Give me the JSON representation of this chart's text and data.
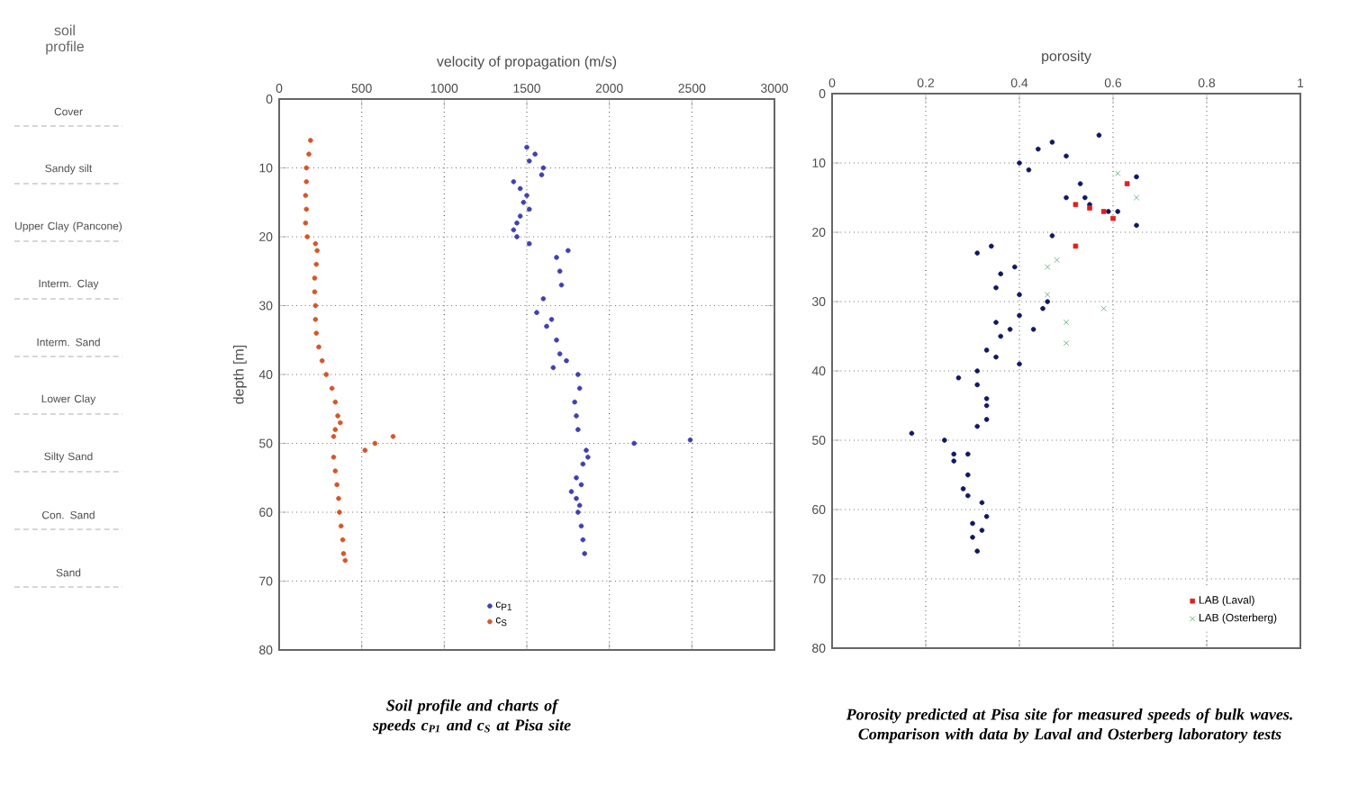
{
  "chart_data": [
    {
      "type": "other",
      "title": "soil profile",
      "annotations": [
        "Cover",
        "Sandy silt",
        "Upper Clay (Pancone)",
        "Interm. Clay",
        "Interm. Sand",
        "Lower Clay",
        "Silty Sand",
        "Con. Sand",
        "Sand"
      ]
    },
    {
      "type": "scatter",
      "xlabel": "velocity of propagation (m/s)",
      "ylabel": "depth [m]",
      "xlim": [
        0,
        3000
      ],
      "ylim": [
        80,
        0
      ],
      "xticks": [
        0,
        500,
        1000,
        1500,
        2000,
        2500,
        3000
      ],
      "yticks": [
        0,
        10,
        20,
        30,
        40,
        50,
        60,
        70,
        80
      ],
      "grid": true,
      "legend": "bottom",
      "annotations": [
        "Soil profile and charts of speeds c$_{P1}$ and c$_{S}$ at Pisa site"
      ],
      "series": [
        {
          "name": "c$_{P1}$",
          "color": "#4040b0",
          "marker": "circle",
          "x": [
            1500,
            1550,
            1515,
            1600,
            1590,
            1420,
            1460,
            1500,
            1480,
            1515,
            1460,
            1440,
            1420,
            1440,
            1515,
            1750,
            1680,
            1700,
            1710,
            1600,
            1560,
            1650,
            1620,
            1680,
            1700,
            1740,
            1660,
            1810,
            1820,
            1790,
            1800,
            1810,
            2490,
            2150,
            1860,
            1870,
            1840,
            1800,
            1770,
            1830,
            1800,
            1820,
            1810,
            1830,
            1840,
            1850
          ],
          "values": [
            7,
            8,
            9,
            10,
            11,
            12,
            13,
            14,
            15,
            16,
            17,
            18,
            19,
            20,
            21,
            22,
            23,
            25,
            27,
            29,
            31,
            32,
            33,
            35,
            37,
            38,
            39,
            40,
            42,
            44,
            46,
            48,
            49.5,
            50,
            51,
            52,
            53,
            55,
            57,
            56,
            58,
            59,
            60,
            62,
            64,
            66
          ]
        },
        {
          "name": "c$_{S}$",
          "color": "#d2572a",
          "marker": "circle",
          "x": [
            190,
            180,
            165,
            165,
            160,
            165,
            160,
            170,
            220,
            230,
            225,
            215,
            215,
            220,
            220,
            225,
            240,
            260,
            285,
            320,
            340,
            355,
            370,
            340,
            330,
            690,
            580,
            520,
            330,
            340,
            350,
            360,
            365,
            375,
            385,
            390,
            400
          ],
          "values": [
            6,
            8,
            10,
            12,
            14,
            16,
            18,
            20,
            21,
            22,
            24,
            26,
            28,
            30,
            32,
            34,
            36,
            38,
            40,
            42,
            44,
            46,
            47,
            48,
            49,
            49,
            50,
            51,
            52,
            54,
            56,
            58,
            60,
            62,
            64,
            66,
            67
          ]
        }
      ]
    },
    {
      "type": "scatter",
      "xlabel": "porosity",
      "xlim": [
        0,
        1
      ],
      "ylim": [
        80,
        0
      ],
      "xticks": [
        0,
        0.2,
        0.4,
        0.6,
        0.8,
        1
      ],
      "yticks": [
        0,
        10,
        20,
        30,
        40,
        50,
        60,
        70,
        80
      ],
      "grid": true,
      "legend": "bottom right",
      "annotations": [
        "Porosity predicted at Pisa site for measured speeds of bulk waves. Comparison with data by Laval and Osterberg laboratory tests"
      ],
      "series": [
        {
          "color": "#101860",
          "marker": "circle",
          "x": [
            0.57,
            0.47,
            0.44,
            0.5,
            0.4,
            0.42,
            0.65,
            0.53,
            0.5,
            0.54,
            0.55,
            0.59,
            0.61,
            0.65,
            0.47,
            0.34,
            0.31,
            0.39,
            0.36,
            0.35,
            0.4,
            0.46,
            0.45,
            0.4,
            0.35,
            0.38,
            0.43,
            0.36,
            0.33,
            0.35,
            0.4,
            0.31,
            0.27,
            0.31,
            0.33,
            0.33,
            0.33,
            0.31,
            0.17,
            0.24,
            0.26,
            0.29,
            0.26,
            0.29,
            0.28,
            0.29,
            0.32,
            0.33,
            0.3,
            0.32,
            0.3,
            0.31
          ],
          "values": [
            6,
            7,
            8,
            9,
            10,
            11,
            12,
            13,
            15,
            15,
            16,
            17,
            17,
            19,
            20.5,
            22,
            23,
            25,
            26,
            28,
            29,
            30,
            31,
            32,
            33,
            34,
            34,
            35,
            37,
            38,
            39,
            40,
            41,
            42,
            44,
            45,
            47,
            48,
            49,
            50,
            52,
            52,
            53,
            55,
            57,
            58,
            59,
            61,
            62,
            63,
            64,
            66
          ]
        },
        {
          "name": "LAB (Laval)",
          "color": "#e02020",
          "marker": "square",
          "x": [
            0.63,
            0.52,
            0.55,
            0.58,
            0.6,
            0.52
          ],
          "values": [
            13,
            16,
            16.5,
            17,
            18,
            22
          ]
        },
        {
          "name": "LAB (Osterberg)",
          "color": "#50a870",
          "marker": "cross",
          "x": [
            0.61,
            0.65,
            0.48,
            0.46,
            0.46,
            0.58,
            0.5,
            0.5
          ],
          "values": [
            11.5,
            15,
            24,
            25,
            29,
            31,
            33,
            36
          ]
        }
      ]
    }
  ]
}
